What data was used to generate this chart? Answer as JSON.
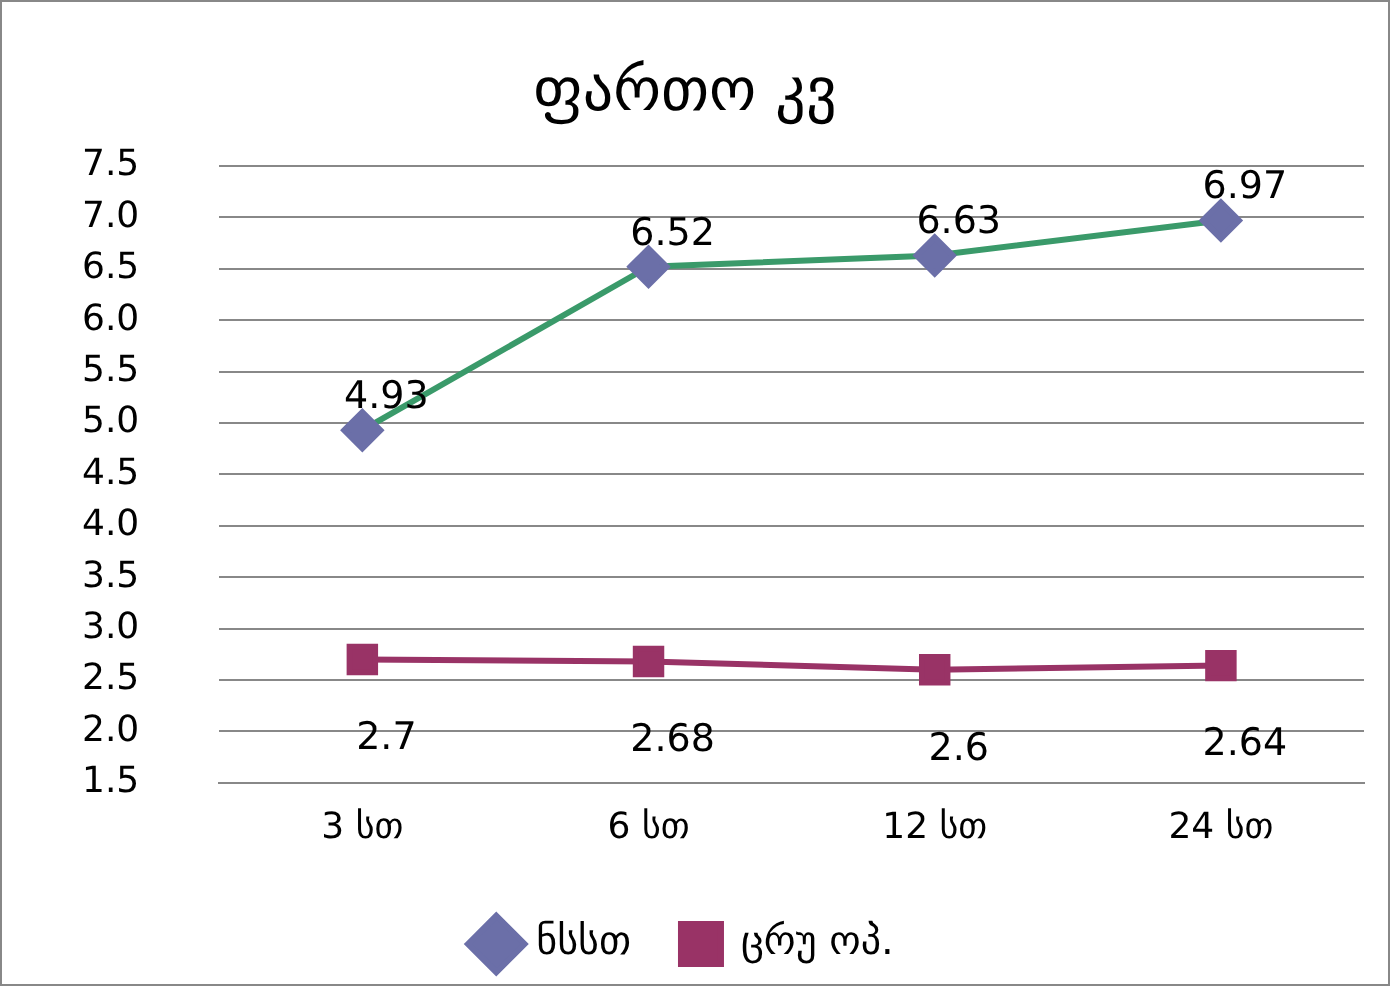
{
  "chart_data": {
    "type": "line",
    "title": "ფართო კვ",
    "categories": [
      "3 სთ",
      "6 სთ",
      "12 სთ",
      "24 სთ"
    ],
    "series": [
      {
        "name": "ნსსთ",
        "color": "#3a9a6a",
        "values": [
          4.93,
          6.52,
          6.63,
          6.97
        ],
        "marker": "diamond"
      },
      {
        "name": "ცრუ ოპ.",
        "color": "#993366",
        "values": [
          2.7,
          2.68,
          2.6,
          2.64
        ],
        "marker": "square"
      }
    ],
    "ylim": [
      1.5,
      7.5
    ],
    "yticks": [
      1.5,
      {
        "value": 2,
        "label": "2.0"
      },
      2.5,
      {
        "value": 3,
        "label": "3.0"
      },
      3.5,
      {
        "value": 4,
        "label": "4.0"
      },
      4.5,
      {
        "value": 5,
        "label": "5.0"
      },
      5.5,
      {
        "value": 6,
        "label": "6.0"
      },
      6.5,
      {
        "value": 7,
        "label": "7.0"
      },
      7.5
    ],
    "grid": "y",
    "legend": "bottom",
    "data_labels": true
  }
}
